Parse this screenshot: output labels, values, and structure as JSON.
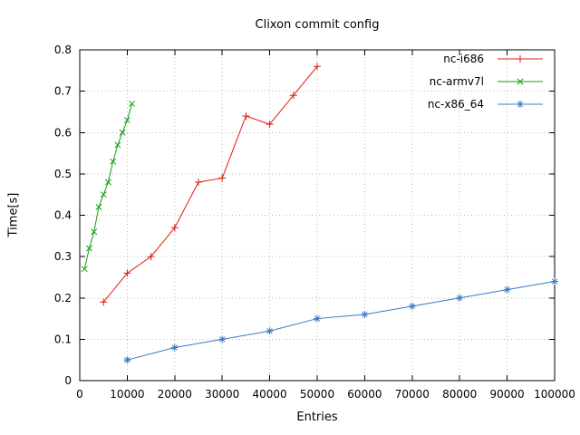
{
  "chart_data": {
    "type": "line",
    "title": "Clixon commit config",
    "xlabel": "Entries",
    "ylabel": "Time[s]",
    "xlim": [
      0,
      100000
    ],
    "ylim": [
      0,
      0.8
    ],
    "xticks": [
      0,
      10000,
      20000,
      30000,
      40000,
      50000,
      60000,
      70000,
      80000,
      90000,
      100000
    ],
    "yticks": [
      0,
      0.1,
      0.2,
      0.3,
      0.4,
      0.5,
      0.6,
      0.7,
      0.8
    ],
    "grid": true,
    "legend_position": "top-right",
    "series": [
      {
        "name": "nc-i686",
        "color": "#dd1c10",
        "marker": "plus",
        "x": [
          5000,
          10000,
          15000,
          20000,
          25000,
          30000,
          35000,
          40000,
          45000,
          50000
        ],
        "y": [
          0.19,
          0.26,
          0.3,
          0.37,
          0.48,
          0.49,
          0.64,
          0.62,
          0.69,
          0.76
        ]
      },
      {
        "name": "nc-armv7l",
        "color": "#10a010",
        "marker": "cross",
        "x": [
          1000,
          2000,
          3000,
          4000,
          5000,
          6000,
          7000,
          8000,
          9000,
          10000,
          11000
        ],
        "y": [
          0.27,
          0.32,
          0.36,
          0.42,
          0.45,
          0.48,
          0.53,
          0.57,
          0.6,
          0.63,
          0.67
        ]
      },
      {
        "name": "nc-x86_64",
        "color": "#3b78c3",
        "marker": "asterisk",
        "x": [
          10000,
          20000,
          30000,
          40000,
          50000,
          60000,
          70000,
          80000,
          90000,
          100000
        ],
        "y": [
          0.05,
          0.08,
          0.1,
          0.12,
          0.15,
          0.16,
          0.18,
          0.2,
          0.22,
          0.24
        ]
      }
    ]
  }
}
